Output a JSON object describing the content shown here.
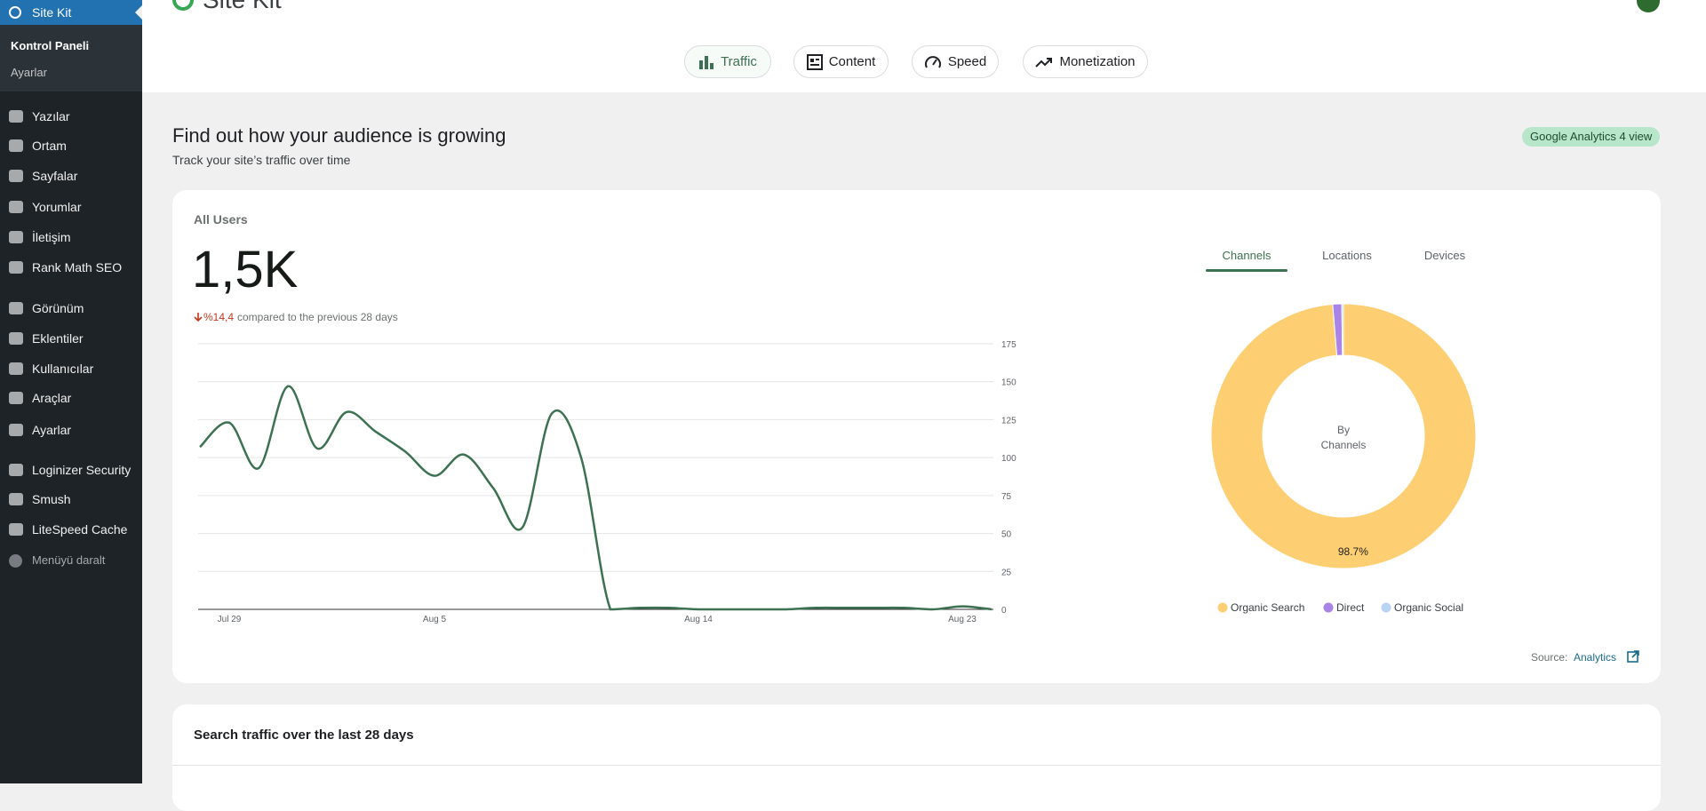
{
  "sidebar": {
    "brand": "Site Kit",
    "sub_items": [
      "Kontrol Paneli",
      "Ayarlar"
    ],
    "menu": [
      "Yazılar",
      "Ortam",
      "Sayfalar",
      "Yorumlar",
      "İletişim",
      "Rank Math SEO",
      "Görünüm",
      "Eklentiler",
      "Kullanıcılar",
      "Araçlar",
      "Ayarlar",
      "Loginizer Security",
      "Smush",
      "LiteSpeed Cache"
    ],
    "collapse": "Menüyü daralt"
  },
  "header": {
    "title": "Site Kit"
  },
  "tabs": [
    "Traffic",
    "Content",
    "Speed",
    "Monetization"
  ],
  "section": {
    "title": "Find out how your audience is growing",
    "subtitle": "Track your site’s traffic over time",
    "badge": "Google Analytics 4 view"
  },
  "card": {
    "metric_label": "All Users",
    "metric_value": "1,5K",
    "change": "%14,4",
    "change_text": "compared to the previous 28 days",
    "source_label": "Source:",
    "source_link": "Analytics"
  },
  "users_chart": {
    "type": "line",
    "color": "#3c7251",
    "categories": [
      null,
      "Jul 29",
      null,
      null,
      null,
      null,
      null,
      null,
      "Aug 5",
      null,
      null,
      null,
      null,
      null,
      null,
      null,
      null,
      "Aug 14",
      null,
      null,
      null,
      null,
      null,
      null,
      null,
      null,
      "Aug 23",
      null
    ],
    "values": [
      107,
      123,
      93,
      147,
      106,
      130,
      117,
      104,
      88,
      102,
      80,
      54,
      129,
      100,
      0,
      1,
      1,
      0,
      0,
      0,
      0,
      1,
      1,
      1,
      1,
      0,
      2,
      0
    ],
    "ylim": [
      0,
      175
    ],
    "yticks": [
      0,
      25,
      50,
      75,
      100,
      125,
      150,
      175
    ],
    "grid": true
  },
  "channels_chart": {
    "type": "donut",
    "tabs": [
      "Channels",
      "Locations",
      "Devices"
    ],
    "center_label": [
      "By",
      "Channels"
    ],
    "series": [
      {
        "name": "Organic Search",
        "color": "#fece72",
        "value": 98.7,
        "value_label": "98.7%"
      },
      {
        "name": "Direct",
        "color": "#a983e6",
        "value": 1.1
      },
      {
        "name": "Organic Social",
        "color": "#b8d3f4",
        "value": 0.2
      }
    ]
  },
  "search_card": {
    "title": "Search traffic over the last 28 days"
  }
}
